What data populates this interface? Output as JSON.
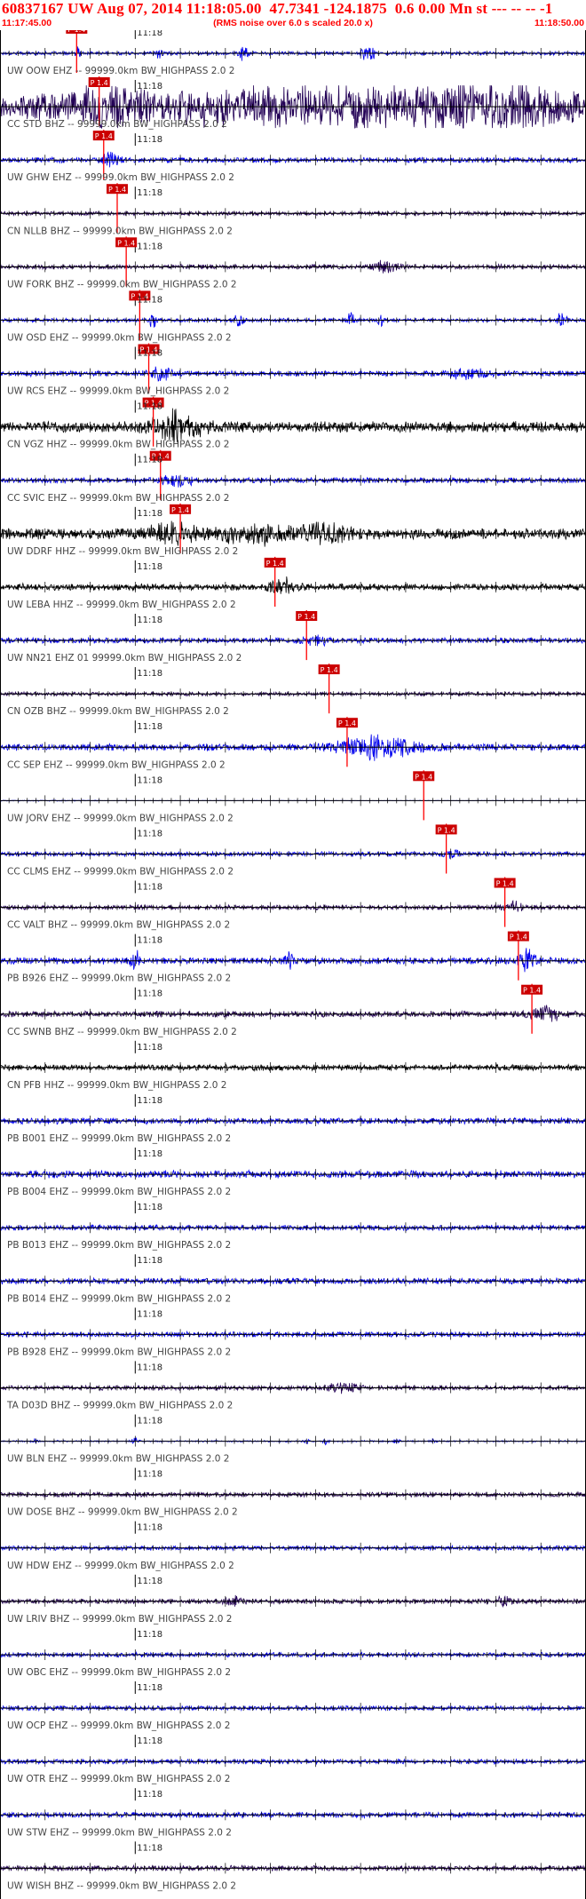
{
  "header": {
    "event_id": "60837167",
    "network": "UW",
    "date": "Aug 07, 2014",
    "origin_time": "11:18:05.00",
    "location": "47.7341 -124.1875",
    "depth_mag": "0.6 0.00",
    "mag_type": "Mn",
    "suffix": "st --- -- -- -1",
    "start_time": "11:17:45.00",
    "end_time": "11:18:50.00",
    "rms_note": "(RMS noise over 6.0 s scaled 20.0 x)"
  },
  "colors": {
    "header_text": "#ff0000",
    "pick_box": "#cc0000",
    "pick_line": "#ff0000",
    "trace_blue": "#0000ee",
    "trace_navy": "#220055",
    "trace_black": "#000000",
    "axis": "#000000",
    "label": "#444444"
  },
  "chart_data": {
    "type": "seismogram",
    "time_range": [
      "11:17:45.00",
      "11:18:50.00"
    ],
    "minute_tick_label": "11:18",
    "pick_label": "P 1.4",
    "filter_label": "BW_HIGHPASS 2.0 2",
    "stations": [
      {
        "label": "UW OOW EHZ -- 99999.0km BW_HIGHPASS 2.0 2",
        "color": "blue",
        "pick_s": 8.5,
        "amp": 0.45,
        "bursts": [
          [
            8.7,
            0.3,
            5
          ],
          [
            17.5,
            0.4,
            3
          ],
          [
            27,
            0.5,
            4
          ],
          [
            40.5,
            0.4,
            5
          ],
          [
            41.3,
            0.3,
            5
          ]
        ]
      },
      {
        "label": "CC STD BHZ -- 99999.0km BW_HIGHPASS 2.0 2",
        "color": "navy",
        "pick_s": 11.0,
        "amp": 2.3,
        "bursts": [
          [
            11.5,
            2.5,
            1.5
          ],
          [
            25,
            20,
            1.3
          ],
          [
            48,
            15,
            1.3
          ],
          [
            57,
            6,
            1.2
          ]
        ]
      },
      {
        "label": "UW GHW EHZ -- 99999.0km BW_HIGHPASS 2.0 2",
        "color": "blue",
        "pick_s": 11.5,
        "amp": 0.7,
        "bursts": [
          [
            12.3,
            0.8,
            2.5
          ]
        ]
      },
      {
        "label": "CN NLLB BHZ -- 99999.0km BW_HIGHPASS 2.0 2",
        "color": "navy",
        "pick_s": 13.0,
        "amp": 0.5,
        "bursts": []
      },
      {
        "label": "UW FORK BHZ -- 99999.0km BW_HIGHPASS 2.0 2",
        "color": "navy",
        "pick_s": 14.0,
        "amp": 0.6,
        "bursts": [
          [
            43,
            1.5,
            3
          ]
        ]
      },
      {
        "label": "UW OSD EHZ -- 99999.0km BW_HIGHPASS 2.0 2",
        "color": "blue",
        "pick_s": 15.5,
        "amp": 0.5,
        "bursts": [
          [
            17,
            0.4,
            5
          ],
          [
            26.5,
            0.5,
            4
          ],
          [
            39,
            0.4,
            5
          ],
          [
            42.2,
            0.3,
            4
          ],
          [
            62.3,
            0.5,
            5
          ]
        ]
      },
      {
        "label": "UW RCS EHZ -- 99999.0km BW_HIGHPASS 2.0 2",
        "color": "blue",
        "pick_s": 16.5,
        "amp": 0.7,
        "bursts": [
          [
            18,
            1.2,
            3
          ],
          [
            52,
            2,
            1.8
          ]
        ]
      },
      {
        "label": "CN VGZ HHZ -- 99999.0km BW_HIGHPASS 2.0 2",
        "color": "black",
        "pick_s": 17.0,
        "amp": 1.4,
        "bursts": [
          [
            19.5,
            2.5,
            2.5
          ]
        ]
      },
      {
        "label": "CC SVIC EHZ -- 99999.0km BW_HIGHPASS 2.0 2",
        "color": "blue",
        "pick_s": 17.8,
        "amp": 0.7,
        "bursts": [
          [
            19.5,
            1.5,
            3
          ]
        ]
      },
      {
        "label": "UW DDRF HHZ -- 99999.0km BW_HIGHPASS 2.0 2",
        "color": "black",
        "pick_s": 20.0,
        "amp": 1.4,
        "bursts": [
          [
            19,
            2.5,
            1.5
          ],
          [
            28,
            4,
            1.5
          ],
          [
            36,
            3,
            1.4
          ]
        ]
      },
      {
        "label": "UW LEBA HHZ -- 99999.0km BW_HIGHPASS 2.0 2",
        "color": "black",
        "pick_s": 30.5,
        "amp": 0.9,
        "bursts": [
          [
            31.5,
            1.5,
            2
          ]
        ]
      },
      {
        "label": "UW NN21 EHZ 01 99999.0km BW_HIGHPASS 2.0 2",
        "color": "blue",
        "pick_s": 34.0,
        "amp": 0.7,
        "bursts": [
          [
            35,
            1.5,
            1.8
          ]
        ]
      },
      {
        "label": "CN OZB BHZ -- 99999.0km BW_HIGHPASS 2.0 2",
        "color": "navy",
        "pick_s": 36.5,
        "amp": 0.5,
        "bursts": []
      },
      {
        "label": "CC SEP EHZ -- 99999.0km BW_HIGHPASS 2.0 2",
        "color": "blue",
        "pick_s": 38.5,
        "amp": 0.9,
        "bursts": [
          [
            42,
            4,
            3.2
          ]
        ]
      },
      {
        "label": "UW JORV EHZ -- 99999.0km BW_HIGHPASS 2.0 2",
        "color": "blue",
        "pick_s": 47.0,
        "amp": 0.15,
        "quiet_after": 11,
        "bursts": []
      },
      {
        "label": "CC CLMS EHZ -- 99999.0km BW_HIGHPASS 2.0 2",
        "color": "blue",
        "pick_s": 49.5,
        "amp": 0.6,
        "bursts": [
          [
            50,
            1,
            1.8
          ]
        ]
      },
      {
        "label": "CC VALT BHZ -- 99999.0km BW_HIGHPASS 2.0 2",
        "color": "navy",
        "pick_s": 56.0,
        "amp": 0.6,
        "bursts": [
          [
            57,
            1.2,
            1.8
          ]
        ]
      },
      {
        "label": "PB B926 EHZ -- 99999.0km BW_HIGHPASS 2.0 2",
        "color": "blue",
        "pick_s": 57.5,
        "amp": 0.9,
        "bursts": [
          [
            15,
            0.6,
            3
          ],
          [
            32,
            0.5,
            2.5
          ],
          [
            58.5,
            1,
            2.5
          ]
        ]
      },
      {
        "label": "CC SWNB BHZ -- 99999.0km BW_HIGHPASS 2.0 2",
        "color": "navy",
        "pick_s": 59.0,
        "amp": 0.8,
        "bursts": [
          [
            60.5,
            1.5,
            2.5
          ]
        ]
      },
      {
        "label": "CN PFB HHZ -- 99999.0km BW_HIGHPASS 2.0 2",
        "color": "black",
        "amp": 0.8,
        "bursts": []
      },
      {
        "label": "PB B001 EHZ -- 99999.0km BW_HIGHPASS 2.0 2",
        "color": "blue",
        "amp": 0.8,
        "bursts": []
      },
      {
        "label": "PB B004 EHZ -- 99999.0km BW_HIGHPASS 2.0 2",
        "color": "blue",
        "amp": 1.0,
        "bursts": []
      },
      {
        "label": "PB B013 EHZ -- 99999.0km BW_HIGHPASS 2.0 2",
        "color": "blue",
        "amp": 0.7,
        "bursts": []
      },
      {
        "label": "PB B014 EHZ -- 99999.0km BW_HIGHPASS 2.0 2",
        "color": "blue",
        "amp": 0.8,
        "bursts": []
      },
      {
        "label": "PB B928 EHZ -- 99999.0km BW_HIGHPASS 2.0 2",
        "color": "blue",
        "amp": 0.7,
        "bursts": []
      },
      {
        "label": "TA D03D BHZ -- 99999.0km BW_HIGHPASS 2.0 2",
        "color": "navy",
        "amp": 0.6,
        "bursts": [
          [
            38,
            1.5,
            2
          ]
        ]
      },
      {
        "label": "UW BLN EHZ -- 99999.0km BW_HIGHPASS 2.0 2",
        "color": "blue",
        "amp": 0.2,
        "bursts": [
          [
            4,
            0.4,
            4
          ],
          [
            15,
            0.4,
            4
          ],
          [
            34,
            0.3,
            4
          ],
          [
            36,
            0.4,
            4
          ],
          [
            44,
            0.3,
            4
          ],
          [
            48,
            0.3,
            3
          ]
        ]
      },
      {
        "label": "UW DOSE BHZ -- 99999.0km BW_HIGHPASS 2.0 2",
        "color": "navy",
        "amp": 0.6,
        "bursts": []
      },
      {
        "label": "UW HDW EHZ -- 99999.0km BW_HIGHPASS 2.0 2",
        "color": "blue",
        "amp": 0.6,
        "bursts": []
      },
      {
        "label": "UW LRIV BHZ -- 99999.0km BW_HIGHPASS 2.0 2",
        "color": "navy",
        "amp": 0.6,
        "bursts": [
          [
            26,
            1,
            2
          ],
          [
            56,
            1.2,
            1.8
          ]
        ]
      },
      {
        "label": "UW OBC EHZ -- 99999.0km BW_HIGHPASS 2.0 2",
        "color": "blue",
        "amp": 0.6,
        "bursts": []
      },
      {
        "label": "UW OCP EHZ -- 99999.0km BW_HIGHPASS 2.0 2",
        "color": "blue",
        "amp": 0.6,
        "bursts": []
      },
      {
        "label": "UW OTR EHZ -- 99999.0km BW_HIGHPASS 2.0 2",
        "color": "blue",
        "amp": 0.6,
        "bursts": []
      },
      {
        "label": "UW STW EHZ -- 99999.0km BW_HIGHPASS 2.0 2",
        "color": "blue",
        "amp": 0.7,
        "bursts": []
      },
      {
        "label": "UW WISH BHZ -- 99999.0km BW_HIGHPASS 2.0 2",
        "color": "navy",
        "amp": 0.7,
        "bursts": []
      }
    ]
  }
}
